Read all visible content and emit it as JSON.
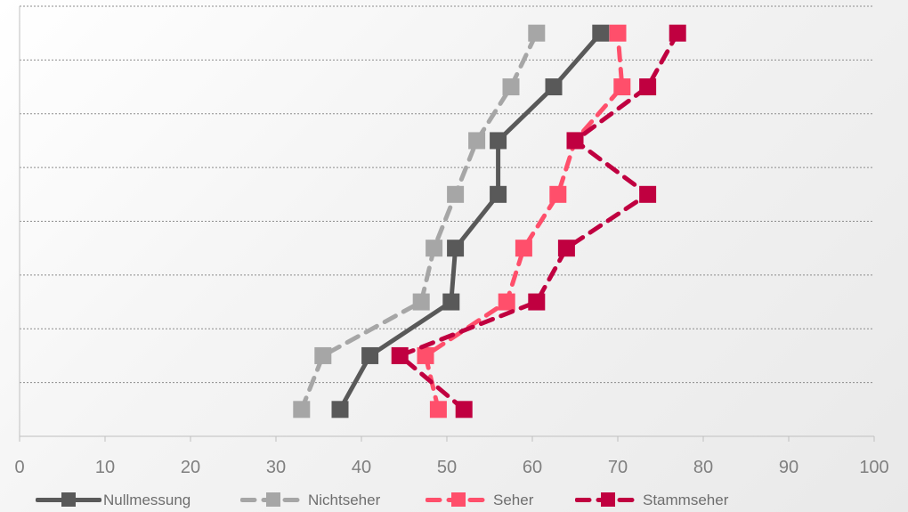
{
  "chart_data": {
    "type": "line",
    "orientation": "horizontal",
    "xlim": [
      0,
      100
    ],
    "x_ticks": [
      0,
      10,
      20,
      30,
      40,
      50,
      60,
      70,
      80,
      90,
      100
    ],
    "category_count": 8,
    "grid": "horizontal dotted lines",
    "legend_position": "bottom",
    "series": [
      {
        "name": "Nullmessung",
        "color": "#595959",
        "style": "solid",
        "values": [
          37.5,
          41,
          50.5,
          51,
          56,
          56,
          62.5,
          68
        ]
      },
      {
        "name": "Nichtseher",
        "color": "#a6a6a6",
        "style": "dashed",
        "values": [
          33,
          35.5,
          47,
          48.5,
          51,
          53.5,
          57.5,
          60.5
        ]
      },
      {
        "name": "Seher",
        "color": "#ff4f6b",
        "style": "dashed",
        "values": [
          49,
          47.5,
          57,
          59,
          63,
          65,
          70.5,
          70
        ]
      },
      {
        "name": "Stammseher",
        "color": "#c00040",
        "style": "dashed",
        "values": [
          52,
          44.5,
          60.5,
          64,
          73.5,
          65,
          73.5,
          77
        ]
      }
    ]
  }
}
